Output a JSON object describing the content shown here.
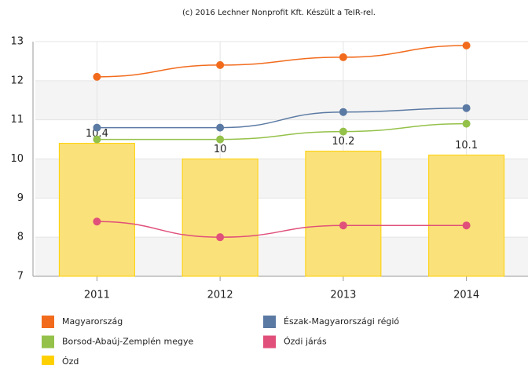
{
  "chart_data": {
    "type": "bar",
    "title": "(c) 2016 Lechner Nonprofit Kft. Készült a TeIR-rel.",
    "categories": [
      "2011",
      "2012",
      "2013",
      "2014"
    ],
    "series": [
      {
        "name": "Magyarország",
        "type": "line",
        "color": "#f26b1d",
        "values": [
          12.1,
          12.4,
          12.6,
          12.9
        ]
      },
      {
        "name": "Észak-Magyarországi régió",
        "type": "line",
        "color": "#5b7aa3",
        "values": [
          10.8,
          10.8,
          11.2,
          11.3
        ]
      },
      {
        "name": "Borsod-Abaúj-Zemplén megye",
        "type": "line",
        "color": "#94c14a",
        "values": [
          10.5,
          10.5,
          10.7,
          10.9
        ]
      },
      {
        "name": "Ózdi járás",
        "type": "line",
        "color": "#e0507a",
        "values": [
          8.4,
          8.0,
          8.3,
          8.3
        ]
      },
      {
        "name": "Ózd",
        "type": "bar",
        "color": "#ffd000",
        "values": [
          10.4,
          10,
          10.2,
          10.1
        ]
      }
    ],
    "ylim": [
      7,
      13
    ],
    "yticks": [
      7,
      8,
      9,
      10,
      11,
      12,
      13
    ],
    "grid": true
  }
}
